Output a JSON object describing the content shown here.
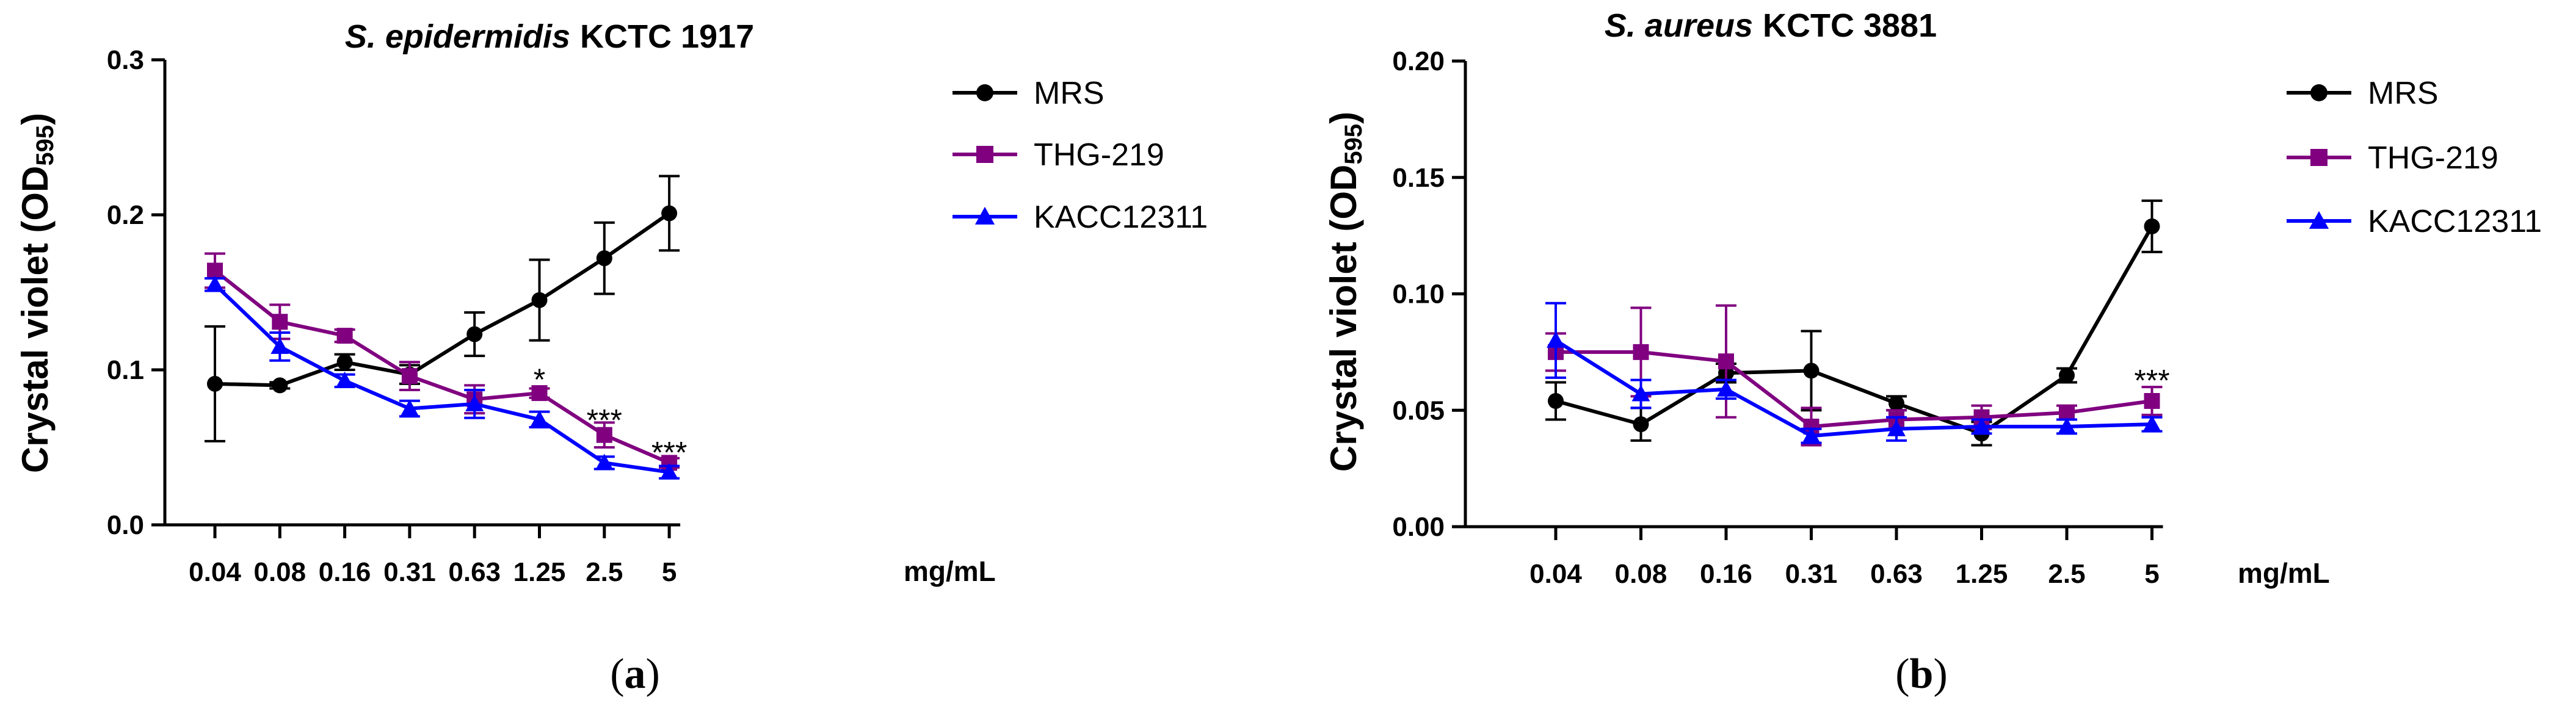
{
  "chart_data": [
    {
      "type": "line",
      "panel_label": "a",
      "title_italic": "S. epidermidis",
      "title_rest": "KCTC 1917",
      "ylabel_main": "Crystal violet (OD",
      "ylabel_sub": "595",
      "ylabel_end": ")",
      "xunit": "mg/mL",
      "categories": [
        "0.04",
        "0.08",
        "0.16",
        "0.31",
        "0.63",
        "1.25",
        "2.5",
        "5"
      ],
      "ylim": [
        0,
        0.3
      ],
      "yticks": [
        0,
        0.1,
        0.2,
        0.3
      ],
      "ytick_labels": [
        "0.0",
        "0.1",
        "0.2",
        "0.3"
      ],
      "series": [
        {
          "name": "MRS",
          "color": "#000000",
          "marker": "circle",
          "values": [
            0.091,
            0.09,
            0.105,
            0.097,
            0.123,
            0.145,
            0.172,
            0.201
          ],
          "errors": [
            0.037,
            0.002,
            0.005,
            0.006,
            0.014,
            0.026,
            0.023,
            0.024
          ]
        },
        {
          "name": "THG-219",
          "color": "#800080",
          "marker": "square",
          "values": [
            0.164,
            0.131,
            0.122,
            0.096,
            0.081,
            0.085,
            0.058,
            0.04
          ],
          "errors": [
            0.011,
            0.011,
            0.004,
            0.009,
            0.009,
            0.003,
            0.008,
            0.003
          ]
        },
        {
          "name": "KACC12311",
          "color": "#0000ff",
          "marker": "triangle",
          "values": [
            0.155,
            0.115,
            0.093,
            0.075,
            0.078,
            0.068,
            0.04,
            0.034
          ],
          "errors": [
            0.004,
            0.009,
            0.004,
            0.005,
            0.009,
            0.005,
            0.004,
            0.004
          ]
        }
      ],
      "annotations": [
        {
          "category": "1.25",
          "text": "*",
          "y": 0.094
        },
        {
          "category": "2.5",
          "text": "***",
          "y": 0.068
        },
        {
          "category": "5",
          "text": "***",
          "y": 0.047
        }
      ]
    },
    {
      "type": "line",
      "panel_label": "b",
      "title_italic": "S. aureus",
      "title_rest": "KCTC 3881",
      "ylabel_main": "Crystal violet (OD",
      "ylabel_sub": "595",
      "ylabel_end": ")",
      "xunit": "mg/mL",
      "categories": [
        "0.04",
        "0.08",
        "0.16",
        "0.31",
        "0.63",
        "1.25",
        "2.5",
        "5"
      ],
      "ylim": [
        0,
        0.2
      ],
      "yticks": [
        0,
        0.05,
        0.1,
        0.15,
        0.2
      ],
      "ytick_labels": [
        "0.00",
        "0.05",
        "0.10",
        "0.15",
        "0.20"
      ],
      "series": [
        {
          "name": "MRS",
          "color": "#000000",
          "marker": "circle",
          "values": [
            0.054,
            0.044,
            0.066,
            0.067,
            0.053,
            0.04,
            0.065,
            0.129
          ],
          "errors": [
            0.008,
            0.007,
            0.004,
            0.017,
            0.003,
            0.005,
            0.003,
            0.011
          ]
        },
        {
          "name": "THG-219",
          "color": "#800080",
          "marker": "square",
          "values": [
            0.075,
            0.075,
            0.071,
            0.043,
            0.046,
            0.047,
            0.049,
            0.054
          ],
          "errors": [
            0.008,
            0.019,
            0.024,
            0.008,
            0.004,
            0.005,
            0.003,
            0.006
          ]
        },
        {
          "name": "KACC12311",
          "color": "#0000ff",
          "marker": "triangle",
          "values": [
            0.08,
            0.057,
            0.059,
            0.039,
            0.042,
            0.043,
            0.043,
            0.044
          ],
          "errors": [
            0.016,
            0.006,
            0.004,
            0.003,
            0.005,
            0.003,
            0.003,
            0.003
          ]
        }
      ],
      "annotations": [
        {
          "category": "5",
          "text": "***",
          "y": 0.063
        }
      ]
    }
  ]
}
